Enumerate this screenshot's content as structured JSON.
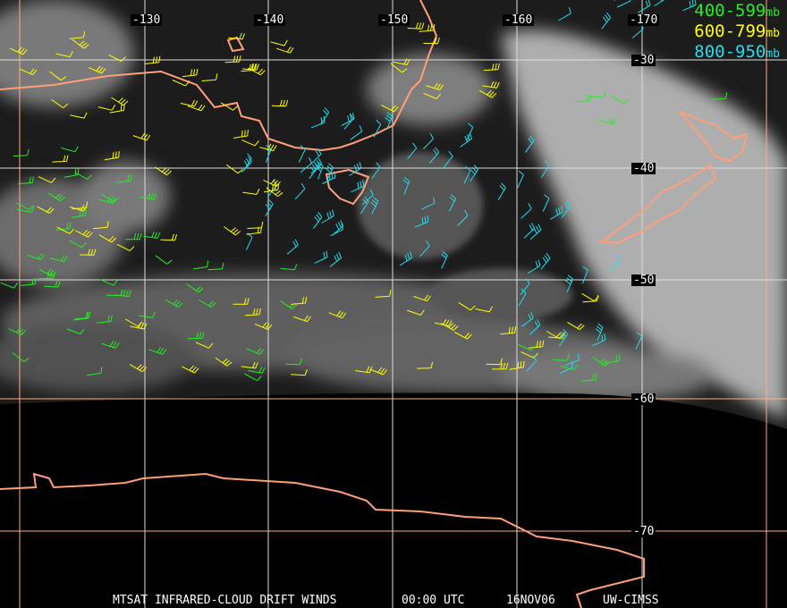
{
  "longitude_labels": [
    "-130",
    "-140",
    "-150",
    "-160",
    "-170"
  ],
  "latitude_labels": [
    "-30",
    "-40",
    "-50",
    "-60",
    "-70"
  ],
  "legend": [
    {
      "range": "400-599",
      "unit": "mb",
      "color": "#22ee22"
    },
    {
      "range": "600-799",
      "unit": "mb",
      "color": "#ffff00"
    },
    {
      "range": "800-950",
      "unit": "mb",
      "color": "#22ddee"
    }
  ],
  "caption": {
    "title": "MTSAT INFRARED-CLOUD DRIFT WINDS",
    "time": "00:00 UTC",
    "date": "16NOV06",
    "source": "UW-CIMSS"
  },
  "colors": {
    "grid": "#ffaa88",
    "coastline": "#ff9f7a",
    "background": "#000000"
  }
}
